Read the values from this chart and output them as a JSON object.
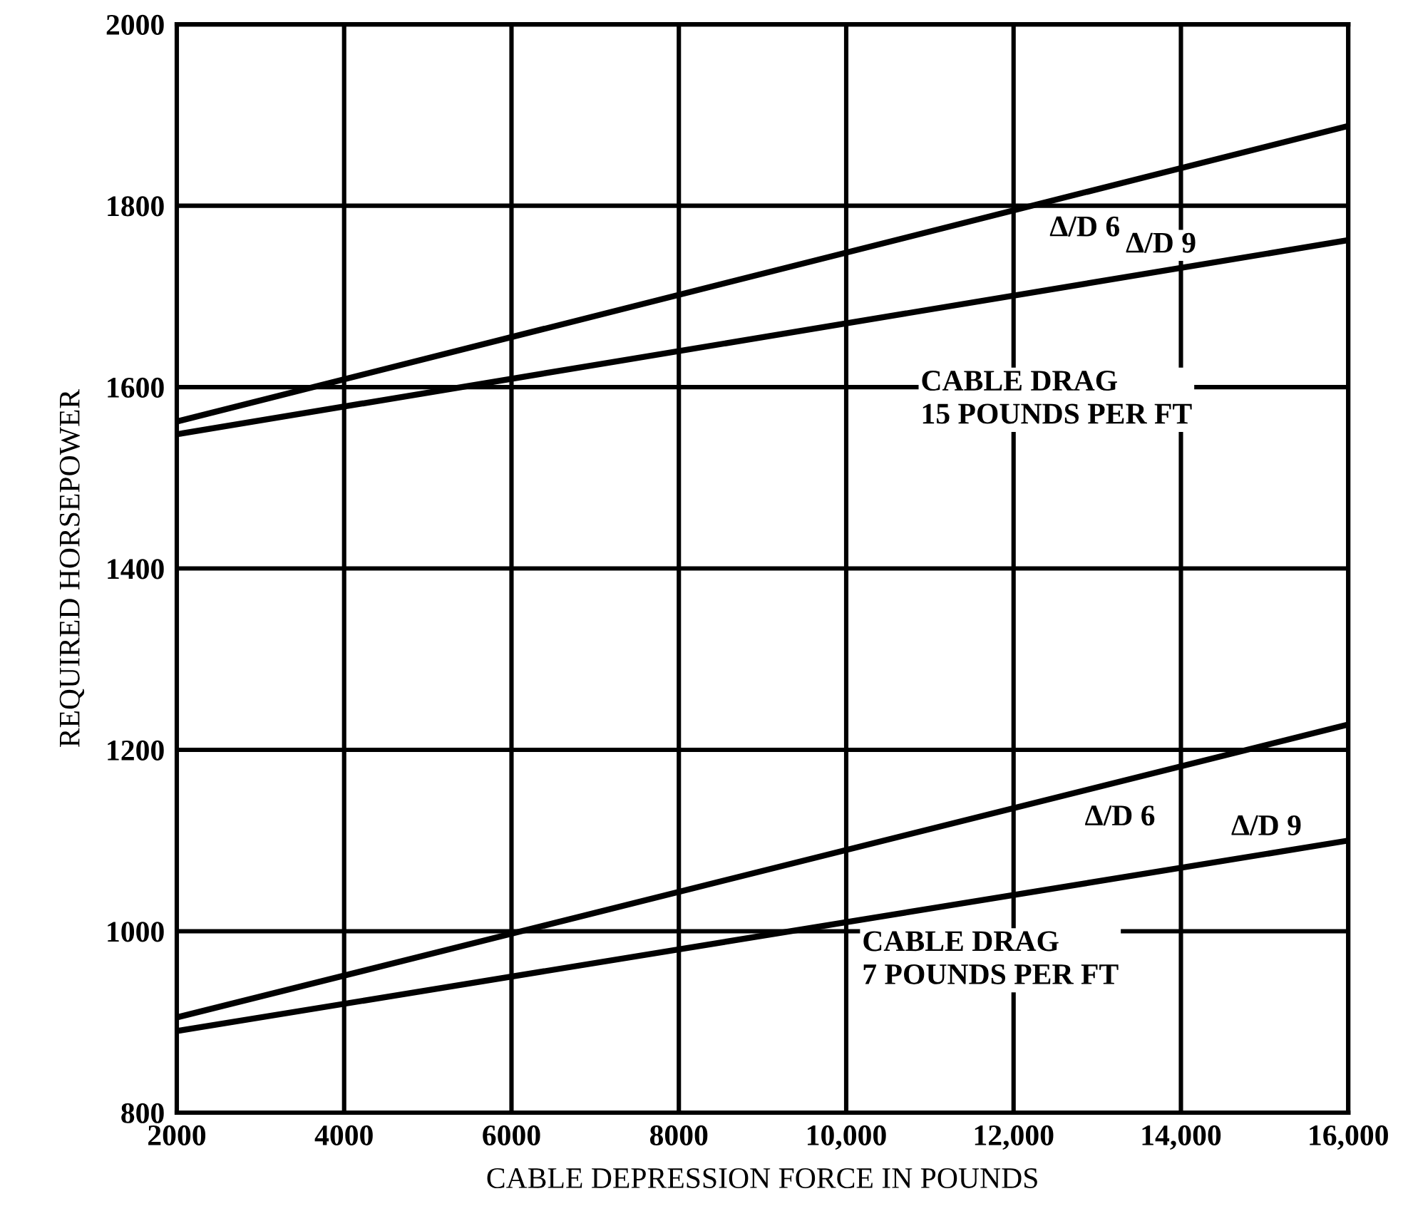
{
  "chart_data": {
    "type": "line",
    "xlabel": "CABLE DEPRESSION FORCE IN POUNDS",
    "ylabel": "REQUIRED HORSEPOWER",
    "x": [
      2000,
      16000
    ],
    "series": [
      {
        "name": "Δ/D 6",
        "color": "#000000",
        "values": [
          1562,
          1888
        ]
      },
      {
        "name": "Δ/D 9",
        "color": "#000000",
        "values": [
          1548,
          1762
        ]
      },
      {
        "name": "Δ/D 6",
        "color": "#000000",
        "values": [
          905,
          1228
        ]
      },
      {
        "name": "Δ/D 9",
        "color": "#000000",
        "values": [
          890,
          1100
        ]
      }
    ],
    "xlim": [
      2000,
      16000
    ],
    "ylim": [
      800,
      2000
    ],
    "xticks": [
      2000,
      4000,
      6000,
      8000,
      {
        "value": 10000,
        "label": "10,000"
      },
      {
        "value": 12000,
        "label": "12,000"
      },
      {
        "value": 14000,
        "label": "14,000"
      },
      {
        "value": 16000,
        "label": "16,000"
      }
    ],
    "yticks": [
      800,
      1000,
      1200,
      1400,
      1600,
      1800,
      2000
    ],
    "grid": true,
    "line_style": "solid",
    "marker": "none",
    "annotations": [
      "CABLE DRAG\n15 POUNDS PER FT",
      "CABLE DRAG\n7 POUNDS PER FT"
    ]
  }
}
